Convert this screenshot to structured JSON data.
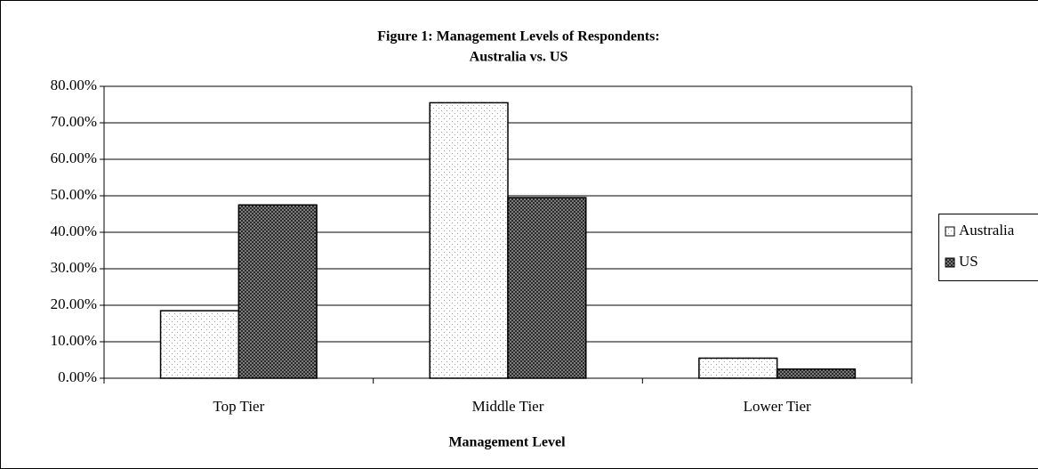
{
  "chart_data": {
    "type": "bar",
    "title": [
      "Figure 1: Management Levels of Respondents:",
      "Australia vs. US"
    ],
    "xlabel": "Management Level",
    "categories": [
      "Top Tier",
      "Middle Tier",
      "Lower Tier"
    ],
    "series": [
      {
        "name": "Australia",
        "color": "#9a9a9a",
        "background": "#ffffff",
        "values": [
          18.5,
          75.5,
          5.5
        ]
      },
      {
        "name": "US",
        "color": "#222222",
        "background": "#9a9a9a",
        "values": [
          47.5,
          49.5,
          2.5
        ]
      }
    ],
    "ylim": [
      0,
      80
    ],
    "yticks": [
      {
        "value": 0,
        "label": "0.00%"
      },
      {
        "value": 10,
        "label": "10.00%"
      },
      {
        "value": 20,
        "label": "20.00%"
      },
      {
        "value": 30,
        "label": "30.00%"
      },
      {
        "value": 40,
        "label": "40.00%"
      },
      {
        "value": 50,
        "label": "50.00%"
      },
      {
        "value": 60,
        "label": "60.00%"
      },
      {
        "value": 70,
        "label": "70.00%"
      },
      {
        "value": 80,
        "label": "80.00%"
      }
    ],
    "grid": true,
    "legend": "right"
  }
}
